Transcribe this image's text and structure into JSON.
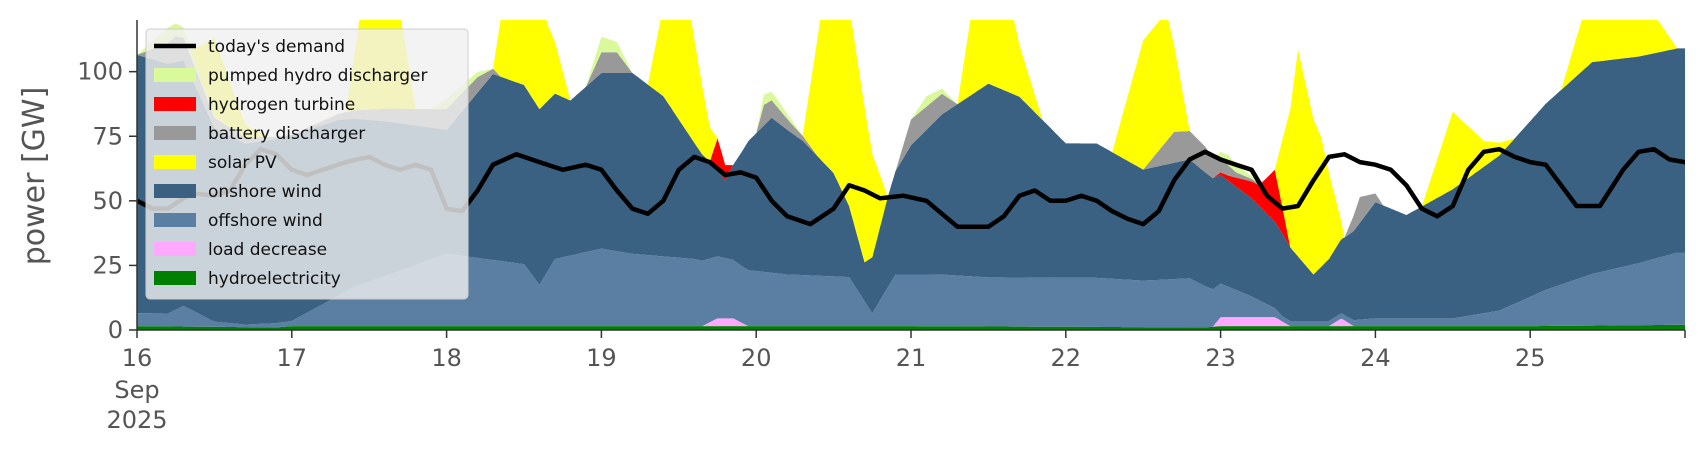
{
  "chart_data": {
    "type": "area",
    "title": "",
    "xlabel": "",
    "ylabel": "power [GW]",
    "ylim": [
      0,
      120
    ],
    "xlim": [
      0,
      10
    ],
    "y_ticks": [
      "0",
      "25",
      "50",
      "75",
      "100"
    ],
    "x_ticks": [
      {
        "day": 0,
        "label": "16",
        "sub1": "Sep",
        "sub2": "2025"
      },
      {
        "day": 1,
        "label": "17"
      },
      {
        "day": 2,
        "label": "18"
      },
      {
        "day": 3,
        "label": "19"
      },
      {
        "day": 4,
        "label": "20"
      },
      {
        "day": 5,
        "label": "21"
      },
      {
        "day": 6,
        "label": "22"
      },
      {
        "day": 7,
        "label": "23"
      },
      {
        "day": 8,
        "label": "24"
      },
      {
        "day": 9,
        "label": "25"
      }
    ],
    "x_unit": "days after 16 Sep 2025 00:00",
    "legend_position": "upper-left",
    "grid": false,
    "stack_order_bottom_to_top": [
      "hydroelectricity",
      "load decrease",
      "offshore wind",
      "onshore wind",
      "hydrogen turbine",
      "battery discharger",
      "pumped hydro discharger",
      "solar PV"
    ],
    "series": [
      {
        "name": "hydroelectricity",
        "color": "#008000",
        "points": [
          [
            0,
            1.5
          ],
          [
            0.9,
            1
          ],
          [
            1,
            1.5
          ],
          [
            3,
            1.5
          ],
          [
            5,
            1.5
          ],
          [
            6.9,
            1
          ],
          [
            7,
            1.5
          ],
          [
            9,
            1.5
          ],
          [
            9.95,
            2
          ]
        ]
      },
      {
        "name": "load decrease",
        "color": "#ffa8ff",
        "points": [
          [
            0,
            0
          ],
          [
            3.65,
            0
          ],
          [
            3.75,
            3
          ],
          [
            3.85,
            3
          ],
          [
            3.95,
            0
          ],
          [
            6.95,
            0
          ],
          [
            7.0,
            3.5
          ],
          [
            7.35,
            3.5
          ],
          [
            7.45,
            0
          ],
          [
            7.7,
            0
          ],
          [
            7.78,
            3
          ],
          [
            7.86,
            0
          ],
          [
            9.95,
            0
          ]
        ]
      },
      {
        "name": "offshore wind",
        "color": "#5b7fa2",
        "points": [
          [
            0,
            5
          ],
          [
            0.2,
            5
          ],
          [
            0.3,
            8
          ],
          [
            0.5,
            2
          ],
          [
            0.7,
            1
          ],
          [
            1,
            2
          ],
          [
            1.4,
            15
          ],
          [
            2,
            28
          ],
          [
            2.5,
            24
          ],
          [
            2.55,
            20
          ],
          [
            2.6,
            16
          ],
          [
            2.7,
            26
          ],
          [
            3,
            30
          ],
          [
            3.2,
            28
          ],
          [
            3.6,
            26
          ],
          [
            3.9,
            22
          ],
          [
            4.2,
            20
          ],
          [
            4.6,
            19
          ],
          [
            4.75,
            5
          ],
          [
            4.9,
            20
          ],
          [
            5,
            20
          ],
          [
            5.2,
            20
          ],
          [
            5.5,
            19
          ],
          [
            6,
            19
          ],
          [
            6.2,
            19
          ],
          [
            6.5,
            18
          ],
          [
            6.8,
            19
          ],
          [
            7,
            13
          ],
          [
            7.2,
            8
          ],
          [
            7.4,
            2
          ],
          [
            7.6,
            2
          ],
          [
            7.8,
            2
          ],
          [
            8,
            3
          ],
          [
            8.5,
            3
          ],
          [
            8.8,
            6
          ],
          [
            9.1,
            14
          ],
          [
            9.4,
            20
          ],
          [
            9.7,
            24
          ],
          [
            9.95,
            28
          ]
        ]
      },
      {
        "name": "onshore wind",
        "color": "#3a6182",
        "points": [
          [
            0,
            100
          ],
          [
            0.3,
            95
          ],
          [
            0.5,
            75
          ],
          [
            0.7,
            70
          ],
          [
            1,
            72
          ],
          [
            1.3,
            68
          ],
          [
            1.6,
            60
          ],
          [
            2,
            48
          ],
          [
            2.3,
            72
          ],
          [
            2.6,
            68
          ],
          [
            2.8,
            60
          ],
          [
            3,
            68
          ],
          [
            3.2,
            70
          ],
          [
            3.4,
            62
          ],
          [
            3.6,
            45
          ],
          [
            3.8,
            30
          ],
          [
            3.95,
            50
          ],
          [
            4.1,
            60
          ],
          [
            4.3,
            52
          ],
          [
            4.5,
            40
          ],
          [
            4.7,
            15
          ],
          [
            4.85,
            35
          ],
          [
            5,
            50
          ],
          [
            5.2,
            62
          ],
          [
            5.5,
            75
          ],
          [
            5.7,
            70
          ],
          [
            6,
            52
          ],
          [
            6.2,
            52
          ],
          [
            6.5,
            43
          ],
          [
            6.8,
            46
          ],
          [
            7,
            42
          ],
          [
            7.2,
            38
          ],
          [
            7.4,
            32
          ],
          [
            7.6,
            18
          ],
          [
            7.8,
            30
          ],
          [
            8,
            45
          ],
          [
            8.2,
            40
          ],
          [
            8.5,
            50
          ],
          [
            8.8,
            60
          ],
          [
            9.1,
            72
          ],
          [
            9.4,
            82
          ],
          [
            9.7,
            80
          ],
          [
            9.95,
            79
          ]
        ]
      },
      {
        "name": "hydrogen turbine",
        "color": "#ff0000",
        "points": [
          [
            0,
            0
          ],
          [
            3.7,
            0
          ],
          [
            3.75,
            12
          ],
          [
            3.85,
            0
          ],
          [
            6.95,
            0
          ],
          [
            7.05,
            2
          ],
          [
            7.25,
            8
          ],
          [
            7.35,
            20
          ],
          [
            7.45,
            0
          ],
          [
            9.95,
            0
          ]
        ]
      },
      {
        "name": "battery discharger",
        "color": "#999999",
        "points": [
          [
            0,
            0
          ],
          [
            0.25,
            10
          ],
          [
            0.5,
            4
          ],
          [
            1,
            0
          ],
          [
            2,
            8
          ],
          [
            2.2,
            6
          ],
          [
            2.35,
            0
          ],
          [
            2.9,
            0
          ],
          [
            3,
            8
          ],
          [
            3.1,
            8
          ],
          [
            3.2,
            0
          ],
          [
            4,
            0
          ],
          [
            4.05,
            8
          ],
          [
            4.25,
            3
          ],
          [
            4.4,
            0
          ],
          [
            4.9,
            0
          ],
          [
            5,
            10
          ],
          [
            5.2,
            8
          ],
          [
            5.3,
            0
          ],
          [
            6.5,
            0
          ],
          [
            6.7,
            12
          ],
          [
            6.9,
            10
          ],
          [
            7.1,
            2
          ],
          [
            7.3,
            0
          ],
          [
            7.8,
            0
          ],
          [
            7.9,
            10
          ],
          [
            8.05,
            0
          ],
          [
            9.95,
            0
          ]
        ]
      },
      {
        "name": "pumped hydro discharger",
        "color": "#d9f99b",
        "points": [
          [
            0,
            0
          ],
          [
            0.2,
            6
          ],
          [
            0.4,
            2
          ],
          [
            0.6,
            0
          ],
          [
            1.9,
            0
          ],
          [
            2,
            4
          ],
          [
            2.2,
            2
          ],
          [
            2.3,
            0
          ],
          [
            2.9,
            0
          ],
          [
            3,
            6
          ],
          [
            3.1,
            4
          ],
          [
            3.2,
            0
          ],
          [
            4,
            0
          ],
          [
            4.05,
            4
          ],
          [
            4.2,
            2
          ],
          [
            4.3,
            0
          ],
          [
            5,
            0
          ],
          [
            5.1,
            4
          ],
          [
            5.2,
            2
          ],
          [
            5.3,
            0
          ],
          [
            6.95,
            0
          ],
          [
            7.05,
            4
          ],
          [
            7.15,
            2
          ],
          [
            7.25,
            0
          ],
          [
            9.95,
            0
          ]
        ]
      },
      {
        "name": "solar PV",
        "color": "#ffff00",
        "points": [
          [
            0,
            0
          ],
          [
            0.35,
            0
          ],
          [
            0.5,
            30
          ],
          [
            0.7,
            5
          ],
          [
            0.85,
            0
          ],
          [
            1.35,
            0
          ],
          [
            1.5,
            60
          ],
          [
            1.65,
            55
          ],
          [
            1.8,
            0
          ],
          [
            2.3,
            0
          ],
          [
            2.5,
            90
          ],
          [
            2.65,
            30
          ],
          [
            2.8,
            0
          ],
          [
            3.3,
            0
          ],
          [
            3.5,
            70
          ],
          [
            3.6,
            40
          ],
          [
            3.75,
            0
          ],
          [
            4.3,
            0
          ],
          [
            4.5,
            95
          ],
          [
            4.7,
            60
          ],
          [
            4.85,
            0
          ],
          [
            5.3,
            0
          ],
          [
            5.5,
            70
          ],
          [
            5.7,
            20
          ],
          [
            5.85,
            0
          ],
          [
            6.3,
            0
          ],
          [
            6.5,
            50
          ],
          [
            6.65,
            50
          ],
          [
            6.8,
            0
          ],
          [
            7.35,
            0
          ],
          [
            7.5,
            80
          ],
          [
            7.65,
            50
          ],
          [
            7.8,
            0
          ],
          [
            8.3,
            0
          ],
          [
            8.5,
            30
          ],
          [
            8.7,
            10
          ],
          [
            8.9,
            0
          ],
          [
            9.2,
            0
          ],
          [
            9.4,
            30
          ],
          [
            9.6,
            50
          ],
          [
            9.8,
            15
          ],
          [
            9.95,
            0
          ]
        ]
      }
    ],
    "demand": {
      "name": "today's demand",
      "color": "#000000",
      "points": [
        [
          0,
          50
        ],
        [
          0.1,
          47
        ],
        [
          0.2,
          47
        ],
        [
          0.35,
          53
        ],
        [
          0.5,
          52
        ],
        [
          0.6,
          54
        ],
        [
          0.7,
          64
        ],
        [
          0.8,
          70
        ],
        [
          0.9,
          68
        ],
        [
          1.0,
          62
        ],
        [
          1.1,
          60
        ],
        [
          1.2,
          62
        ],
        [
          1.35,
          65
        ],
        [
          1.5,
          67
        ],
        [
          1.6,
          64
        ],
        [
          1.7,
          62
        ],
        [
          1.8,
          64
        ],
        [
          1.9,
          62
        ],
        [
          2.0,
          47
        ],
        [
          2.1,
          46
        ],
        [
          2.2,
          54
        ],
        [
          2.3,
          64
        ],
        [
          2.45,
          68
        ],
        [
          2.6,
          65
        ],
        [
          2.75,
          62
        ],
        [
          2.9,
          64
        ],
        [
          3.0,
          62
        ],
        [
          3.1,
          54
        ],
        [
          3.2,
          47
        ],
        [
          3.3,
          45
        ],
        [
          3.4,
          50
        ],
        [
          3.5,
          62
        ],
        [
          3.6,
          67
        ],
        [
          3.7,
          65
        ],
        [
          3.8,
          60
        ],
        [
          3.9,
          61
        ],
        [
          4.0,
          59
        ],
        [
          4.1,
          50
        ],
        [
          4.2,
          44
        ],
        [
          4.35,
          41
        ],
        [
          4.5,
          47
        ],
        [
          4.6,
          56
        ],
        [
          4.7,
          54
        ],
        [
          4.8,
          51
        ],
        [
          4.95,
          52
        ],
        [
          5.1,
          50
        ],
        [
          5.2,
          45
        ],
        [
          5.3,
          40
        ],
        [
          5.5,
          40
        ],
        [
          5.6,
          44
        ],
        [
          5.7,
          52
        ],
        [
          5.8,
          54
        ],
        [
          5.9,
          50
        ],
        [
          6.0,
          50
        ],
        [
          6.1,
          52
        ],
        [
          6.2,
          50
        ],
        [
          6.3,
          46
        ],
        [
          6.4,
          43
        ],
        [
          6.5,
          41
        ],
        [
          6.6,
          46
        ],
        [
          6.7,
          58
        ],
        [
          6.8,
          66
        ],
        [
          6.9,
          69
        ],
        [
          7.0,
          66
        ],
        [
          7.1,
          64
        ],
        [
          7.2,
          62
        ],
        [
          7.3,
          52
        ],
        [
          7.4,
          47
        ],
        [
          7.5,
          48
        ],
        [
          7.6,
          58
        ],
        [
          7.7,
          67
        ],
        [
          7.8,
          68
        ],
        [
          7.9,
          65
        ],
        [
          8.0,
          64
        ],
        [
          8.1,
          62
        ],
        [
          8.2,
          56
        ],
        [
          8.3,
          47
        ],
        [
          8.4,
          44
        ],
        [
          8.5,
          48
        ],
        [
          8.6,
          62
        ],
        [
          8.7,
          69
        ],
        [
          8.8,
          70
        ],
        [
          8.9,
          67
        ],
        [
          9.0,
          65
        ],
        [
          9.1,
          64
        ],
        [
          9.2,
          56
        ],
        [
          9.3,
          48
        ],
        [
          9.45,
          48
        ],
        [
          9.6,
          62
        ],
        [
          9.7,
          69
        ],
        [
          9.8,
          70
        ],
        [
          9.9,
          66
        ],
        [
          10.0,
          65
        ],
        [
          10.1,
          62
        ],
        [
          10.2,
          55
        ],
        [
          10.35,
          50
        ]
      ]
    },
    "legend": [
      {
        "label": "today's demand",
        "kind": "line",
        "color": "#000000"
      },
      {
        "label": "pumped hydro discharger",
        "kind": "patch",
        "color": "#d9f99b"
      },
      {
        "label": "hydrogen turbine",
        "kind": "patch",
        "color": "#ff0000"
      },
      {
        "label": "battery discharger",
        "kind": "patch",
        "color": "#999999"
      },
      {
        "label": "solar PV",
        "kind": "patch",
        "color": "#ffff00"
      },
      {
        "label": "onshore wind",
        "kind": "patch",
        "color": "#3a6182"
      },
      {
        "label": "offshore wind",
        "kind": "patch",
        "color": "#5b7fa2"
      },
      {
        "label": "load decrease",
        "kind": "patch",
        "color": "#ffa8ff"
      },
      {
        "label": "hydroelectricity",
        "kind": "patch",
        "color": "#008000"
      }
    ]
  }
}
